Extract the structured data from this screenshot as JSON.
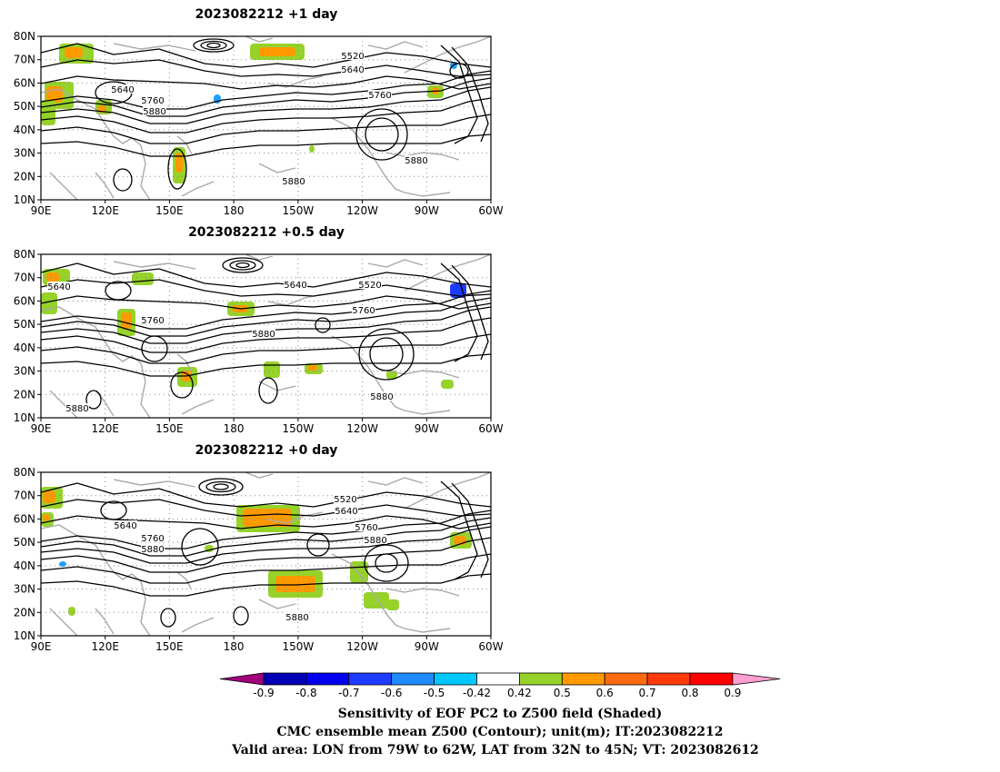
{
  "chart_data": {
    "type": "contour-map",
    "panels": [
      {
        "title": "2023082212 +1 day",
        "contour_labels": [
          "5520",
          "5640",
          "5640",
          "5760",
          "5760",
          "5880",
          "5880",
          "5880"
        ]
      },
      {
        "title": "2023082212 +0.5 day",
        "contour_labels": [
          "5640",
          "5640",
          "5520",
          "5760",
          "5760",
          "5880",
          "5880",
          "5880"
        ]
      },
      {
        "title": "2023082212 +0 day",
        "contour_labels": [
          "5520",
          "5640",
          "5640",
          "5760",
          "5760",
          "5880",
          "5880",
          "5880"
        ]
      }
    ],
    "x_ticks": [
      "90E",
      "120E",
      "150E",
      "180",
      "150W",
      "120W",
      "90W",
      "60W"
    ],
    "y_ticks": [
      "80N",
      "70N",
      "60N",
      "50N",
      "40N",
      "30N",
      "20N",
      "10N"
    ],
    "lon_range": [
      90,
      300
    ],
    "lat_range": [
      10,
      80
    ],
    "grid": "dotted",
    "colorbar": {
      "tick_labels": [
        "-0.9",
        "-0.8",
        "-0.7",
        "-0.6",
        "-0.5",
        "-0.42",
        "0.42",
        "0.5",
        "0.6",
        "0.7",
        "0.8",
        "0.9"
      ],
      "colors": [
        "#a0007c",
        "#0000b4",
        "#0000f0",
        "#1e3cff",
        "#1e8cff",
        "#00c8ff",
        "#ffffff",
        "#96d22a",
        "#ff9900",
        "#ff6a10",
        "#ff3a0a",
        "#ff0000",
        "#ff9fd0"
      ]
    },
    "shading_colors": {
      "green": "#96d22a",
      "orange": "#ff9900",
      "dark_orange": "#ff6a10",
      "light_blue": "#1ea0ff",
      "blue": "#1e3cff"
    },
    "line_colors": {
      "contour": "#000000",
      "coast": "#a9a9a9",
      "grid": "#888888"
    }
  },
  "footer": {
    "line1": "Sensitivity of EOF PC2 to Z500 field (Shaded)",
    "line2": "CMC ensemble mean Z500 (Contour); unit(m); IT:2023082212",
    "line3": "Valid area: LON from 79W to 62W, LAT from 32N to 45N; VT: 2023082612"
  }
}
